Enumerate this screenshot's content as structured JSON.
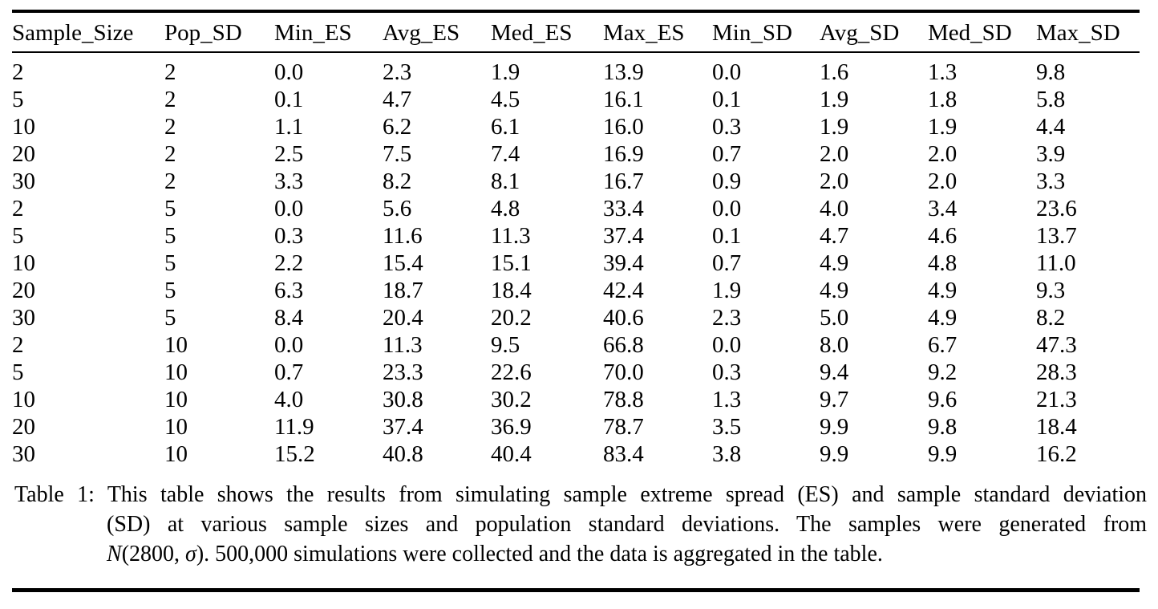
{
  "table": {
    "columns": [
      "Sample_Size",
      "Pop_SD",
      "Min_ES",
      "Avg_ES",
      "Med_ES",
      "Max_ES",
      "Min_SD",
      "Avg_SD",
      "Med_SD",
      "Max_SD"
    ],
    "rows": [
      [
        "2",
        "2",
        "0.0",
        "2.3",
        "1.9",
        "13.9",
        "0.0",
        "1.6",
        "1.3",
        "9.8"
      ],
      [
        "5",
        "2",
        "0.1",
        "4.7",
        "4.5",
        "16.1",
        "0.1",
        "1.9",
        "1.8",
        "5.8"
      ],
      [
        "10",
        "2",
        "1.1",
        "6.2",
        "6.1",
        "16.0",
        "0.3",
        "1.9",
        "1.9",
        "4.4"
      ],
      [
        "20",
        "2",
        "2.5",
        "7.5",
        "7.4",
        "16.9",
        "0.7",
        "2.0",
        "2.0",
        "3.9"
      ],
      [
        "30",
        "2",
        "3.3",
        "8.2",
        "8.1",
        "16.7",
        "0.9",
        "2.0",
        "2.0",
        "3.3"
      ],
      [
        "2",
        "5",
        "0.0",
        "5.6",
        "4.8",
        "33.4",
        "0.0",
        "4.0",
        "3.4",
        "23.6"
      ],
      [
        "5",
        "5",
        "0.3",
        "11.6",
        "11.3",
        "37.4",
        "0.1",
        "4.7",
        "4.6",
        "13.7"
      ],
      [
        "10",
        "5",
        "2.2",
        "15.4",
        "15.1",
        "39.4",
        "0.7",
        "4.9",
        "4.8",
        "11.0"
      ],
      [
        "20",
        "5",
        "6.3",
        "18.7",
        "18.4",
        "42.4",
        "1.9",
        "4.9",
        "4.9",
        "9.3"
      ],
      [
        "30",
        "5",
        "8.4",
        "20.4",
        "20.2",
        "40.6",
        "2.3",
        "5.0",
        "4.9",
        "8.2"
      ],
      [
        "2",
        "10",
        "0.0",
        "11.3",
        "9.5",
        "66.8",
        "0.0",
        "8.0",
        "6.7",
        "47.3"
      ],
      [
        "5",
        "10",
        "0.7",
        "23.3",
        "22.6",
        "70.0",
        "0.3",
        "9.4",
        "9.2",
        "28.3"
      ],
      [
        "10",
        "10",
        "4.0",
        "30.8",
        "30.2",
        "78.8",
        "1.3",
        "9.7",
        "9.6",
        "21.3"
      ],
      [
        "20",
        "10",
        "11.9",
        "37.4",
        "36.9",
        "78.7",
        "3.5",
        "9.9",
        "9.8",
        "18.4"
      ],
      [
        "30",
        "10",
        "15.2",
        "40.8",
        "40.4",
        "83.4",
        "3.8",
        "9.9",
        "9.9",
        "16.2"
      ]
    ]
  },
  "caption": {
    "label": "Table 1:",
    "line1": "Table 1: This table shows the results from simulating sample extreme spread (ES) and sample standard deviation",
    "line2": "(SD) at various sample sizes and population standard deviations.  The samples were generated from",
    "line3_math_n": "N",
    "line3_math_args": "(2800, ",
    "line3_math_sigma": "σ",
    "line3_math_close": ").",
    "line3_rest": " 500,000 simulations were collected and the data is aggregated in the table."
  },
  "colors": {
    "background": "#ffffff",
    "text": "#000000",
    "rule": "#000000"
  }
}
